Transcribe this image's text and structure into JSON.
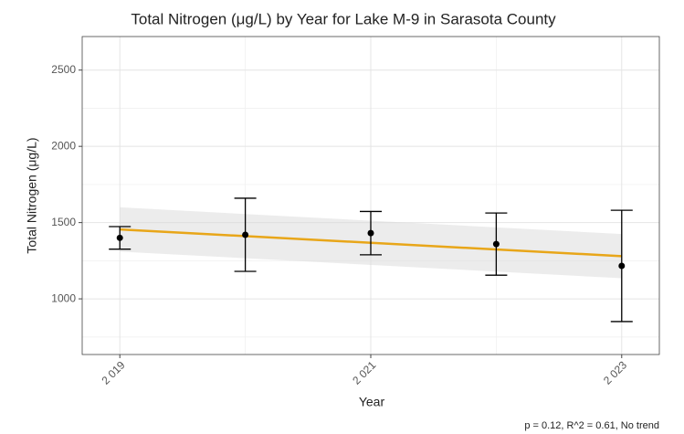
{
  "chart_data": {
    "type": "errorbar",
    "title": "Total Nitrogen (μg/L) by Year for Lake M-9 in Sarasota County",
    "x_label": "Year",
    "y_label": "Total Nitrogen (μg/L)",
    "caption": "p = 0.12, R^2 = 0.61, No trend",
    "x": [
      2019,
      2020,
      2021,
      2022,
      2023
    ],
    "values": [
      1400,
      1420,
      1431,
      1359,
      1216
    ],
    "errors": [
      74,
      240,
      142,
      204,
      365
    ],
    "color": "#000000",
    "trend": {
      "x": [
        2019,
        2023
      ],
      "values": [
        1455,
        1280
      ],
      "lower": [
        1310,
        1135
      ],
      "upper": [
        1600,
        1425
      ],
      "color": "#e8a619"
    },
    "xlim": [
      2018.7,
      2023.3
    ],
    "ylim": [
      635,
      2720
    ],
    "xticks": [
      {
        "value": 2019,
        "label": "2 019"
      },
      {
        "value": 2021,
        "label": "2 021"
      },
      {
        "value": 2023,
        "label": "2 023"
      }
    ],
    "xticks_minor": [
      2020,
      2022
    ],
    "yticks": [
      1000,
      1500,
      2000,
      2500
    ],
    "yticks_minor": [
      750,
      1250,
      1750,
      2250
    ],
    "grid": true
  }
}
